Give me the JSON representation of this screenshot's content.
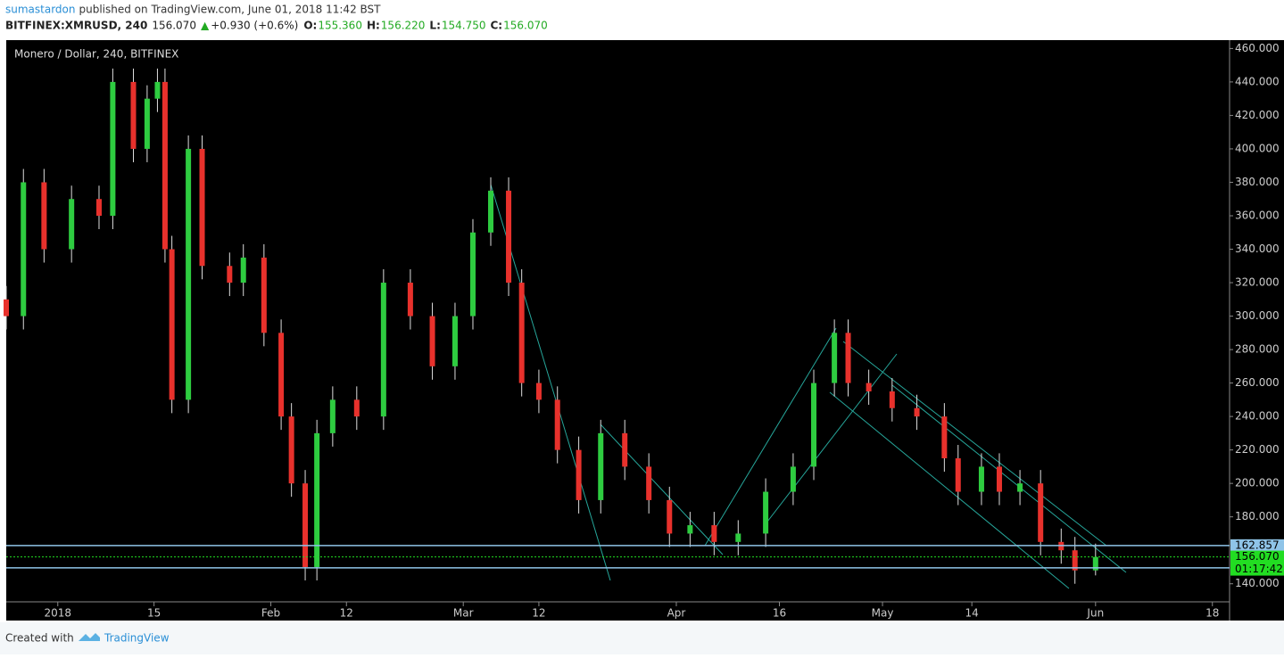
{
  "header": {
    "author": "sumastardon",
    "published": "published on TradingView.com, June 01, 2018 11:42 BST",
    "symbol": "BITFINEX:XMRUSD, 240",
    "last": "156.070",
    "arrow": "▲",
    "change": "+0.930 (+0.6%)",
    "ohlc": [
      {
        "label": "O:",
        "value": "155.360"
      },
      {
        "label": "H:",
        "value": "156.220"
      },
      {
        "label": "L:",
        "value": "154.750"
      },
      {
        "label": "C:",
        "value": "156.070"
      }
    ]
  },
  "chart_data": {
    "type": "candlestick",
    "title": "Monero / Dollar, 240, BITFINEX",
    "x": [
      -7.5,
      -5,
      -2,
      2,
      6,
      8,
      11,
      13,
      14.5,
      15.6,
      16.6,
      19,
      21,
      25,
      27,
      30,
      32.5,
      34,
      36,
      37.7,
      40,
      43.5,
      47.4,
      51.3,
      54.5,
      57.8,
      60.4,
      63,
      65.6,
      67.5,
      70,
      72.7,
      75.8,
      79,
      82.5,
      86,
      89,
      92,
      95.5,
      99,
      103,
      107,
      110,
      113,
      115,
      118,
      121.4,
      125,
      129,
      131,
      134.4,
      137,
      140,
      143,
      146,
      148,
      151
    ],
    "open": [
      310,
      300,
      380,
      340,
      370,
      360,
      440,
      400,
      430,
      440,
      340,
      250,
      400,
      330,
      320,
      335,
      290,
      240,
      200,
      150,
      230,
      250,
      240,
      320,
      300,
      270,
      300,
      350,
      375,
      320,
      260,
      250,
      220,
      190,
      230,
      210,
      190,
      170,
      175,
      165,
      170,
      195,
      210,
      260,
      290,
      260,
      255,
      245,
      240,
      215,
      195,
      210,
      195,
      200,
      165,
      160,
      148
    ],
    "high": [
      318,
      388,
      388,
      378,
      378,
      448,
      448,
      438,
      448,
      448,
      348,
      408,
      408,
      338,
      343,
      343,
      298,
      248,
      208,
      238,
      258,
      258,
      328,
      328,
      308,
      308,
      358,
      383,
      383,
      328,
      268,
      258,
      228,
      238,
      238,
      218,
      198,
      183,
      183,
      178,
      203,
      218,
      268,
      298,
      298,
      268,
      263,
      253,
      248,
      223,
      218,
      218,
      208,
      208,
      173,
      168,
      164
    ],
    "low": [
      292,
      292,
      332,
      332,
      352,
      352,
      392,
      392,
      422,
      332,
      242,
      242,
      322,
      312,
      312,
      282,
      232,
      192,
      142,
      142,
      222,
      232,
      232,
      292,
      262,
      262,
      292,
      342,
      312,
      252,
      242,
      212,
      182,
      182,
      202,
      182,
      162,
      162,
      157,
      157,
      162,
      187,
      202,
      252,
      252,
      247,
      237,
      232,
      207,
      187,
      187,
      187,
      187,
      157,
      152,
      140,
      145
    ],
    "close": [
      300,
      380,
      340,
      370,
      360,
      440,
      400,
      430,
      440,
      340,
      250,
      400,
      330,
      320,
      335,
      290,
      240,
      200,
      150,
      230,
      250,
      240,
      320,
      300,
      270,
      300,
      350,
      375,
      320,
      260,
      250,
      220,
      190,
      230,
      210,
      190,
      170,
      175,
      165,
      170,
      195,
      210,
      260,
      290,
      260,
      255,
      245,
      240,
      215,
      195,
      210,
      195,
      200,
      165,
      160,
      148,
      156
    ],
    "up_color": "#2ecc40",
    "down_color": "#e8312c",
    "xlim": [
      -7.5,
      170.5
    ],
    "xticks": [
      {
        "value": 0,
        "label": "2018"
      },
      {
        "value": 14,
        "label": "15"
      },
      {
        "value": 31,
        "label": "Feb"
      },
      {
        "value": 42,
        "label": "12"
      },
      {
        "value": 59,
        "label": "Mar"
      },
      {
        "value": 70,
        "label": "12"
      },
      {
        "value": 90,
        "label": "Apr"
      },
      {
        "value": 105,
        "label": "16"
      },
      {
        "value": 120,
        "label": "May"
      },
      {
        "value": 133,
        "label": "14"
      },
      {
        "value": 151,
        "label": "Jun"
      },
      {
        "value": 168,
        "label": "18"
      }
    ],
    "ylim": [
      118,
      465
    ],
    "yticks": [
      {
        "value": 140,
        "label": "140.000"
      },
      {
        "value": 180,
        "label": "180.000"
      },
      {
        "value": 200,
        "label": "200.000"
      },
      {
        "value": 220,
        "label": "220.000"
      },
      {
        "value": 240,
        "label": "240.000"
      },
      {
        "value": 260,
        "label": "260.000"
      },
      {
        "value": 280,
        "label": "280.000"
      },
      {
        "value": 300,
        "label": "300.000"
      },
      {
        "value": 320,
        "label": "320.000"
      },
      {
        "value": 340,
        "label": "340.000"
      },
      {
        "value": 360,
        "label": "360.000"
      },
      {
        "value": 380,
        "label": "380.000"
      },
      {
        "value": 400,
        "label": "400.000"
      },
      {
        "value": 420,
        "label": "420.000"
      },
      {
        "value": 440,
        "label": "440.000"
      },
      {
        "value": 460,
        "label": "460.000"
      }
    ],
    "levels": [
      {
        "value": 162.857,
        "label": "162.857",
        "color": "#8fc4e8"
      },
      {
        "value": 149.5,
        "color": "#8fc4e8"
      }
    ],
    "last_price": {
      "value": 156.07,
      "label": "156.070",
      "color": "#22dd22"
    },
    "countdown": "01:17:42"
  },
  "footer": {
    "created": "Created with",
    "brand": "TradingView"
  }
}
